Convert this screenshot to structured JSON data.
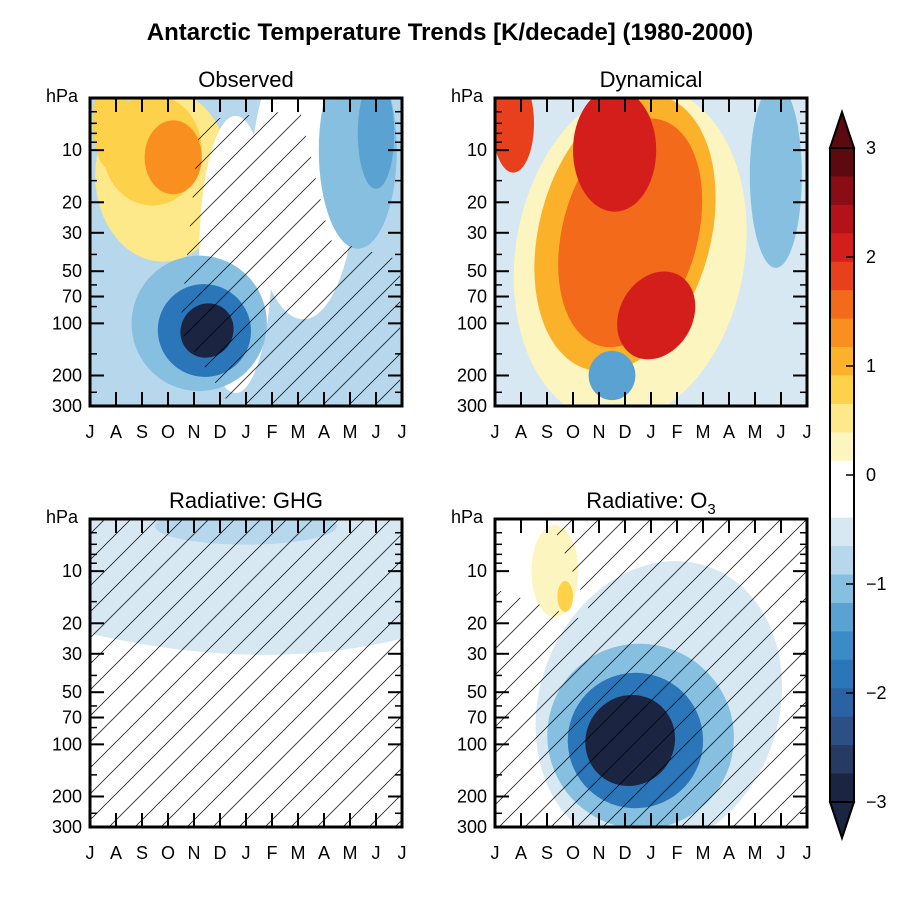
{
  "title": "Antarctic Temperature Trends [K/decade] (1980-2000)",
  "pressure_unit": "hPa",
  "chart_data": [
    {
      "type": "heatmap",
      "panel": "observed",
      "title": "Observed",
      "x_ticks": [
        "J",
        "A",
        "S",
        "O",
        "N",
        "D",
        "J",
        "F",
        "M",
        "A",
        "M",
        "J",
        "J"
      ],
      "y_ticks": [
        10,
        20,
        30,
        50,
        70,
        100,
        200,
        300
      ],
      "y_scale": "log",
      "ylim": [
        300,
        5
      ],
      "features": [
        {
          "kind": "warm",
          "month": 2.8,
          "p": 12,
          "value": 1.2
        },
        {
          "kind": "warm",
          "month": 1.0,
          "p": 8,
          "value": 0.9
        },
        {
          "kind": "cold",
          "month": 4.5,
          "p": 100,
          "value": -3.0
        },
        {
          "kind": "cold",
          "month": 10.5,
          "p": 8,
          "value": -1.3
        }
      ]
    },
    {
      "type": "heatmap",
      "panel": "dynamical",
      "title": "Dynamical",
      "x_ticks": [
        "J",
        "A",
        "S",
        "O",
        "N",
        "D",
        "J",
        "F",
        "M",
        "A",
        "M",
        "J",
        "J"
      ],
      "y_ticks": [
        10,
        20,
        30,
        50,
        70,
        100,
        200,
        300
      ],
      "y_scale": "log",
      "ylim": [
        300,
        5
      ],
      "features": [
        {
          "kind": "warm",
          "month": 5.0,
          "p": 15,
          "value": 2.1
        },
        {
          "kind": "warm",
          "month": 6.2,
          "p": 90,
          "value": 2.2
        },
        {
          "kind": "warm",
          "month": 0.7,
          "p": 7,
          "value": 1.8
        },
        {
          "kind": "cold",
          "month": 4.5,
          "p": 200,
          "value": -1.4
        },
        {
          "kind": "cold",
          "month": 10.8,
          "p": 15,
          "value": -1.2
        }
      ]
    },
    {
      "type": "heatmap",
      "panel": "radiative_ghg",
      "title": "Radiative: GHG",
      "x_ticks": [
        "J",
        "A",
        "S",
        "O",
        "N",
        "D",
        "J",
        "F",
        "M",
        "A",
        "M",
        "J",
        "J"
      ],
      "y_ticks": [
        10,
        20,
        30,
        50,
        70,
        100,
        200,
        300
      ],
      "y_scale": "log",
      "ylim": [
        300,
        5
      ],
      "features": [
        {
          "kind": "cold",
          "month": 6,
          "p": 5,
          "value": -0.9
        },
        {
          "kind": "cold",
          "month": 6,
          "p": 20,
          "value": -0.5
        }
      ]
    },
    {
      "type": "heatmap",
      "panel": "radiative_o3",
      "title": "Radiative: O",
      "title_sub": "3",
      "x_ticks": [
        "J",
        "A",
        "S",
        "O",
        "N",
        "D",
        "J",
        "F",
        "M",
        "A",
        "M",
        "J",
        "J"
      ],
      "y_ticks": [
        10,
        20,
        30,
        50,
        70,
        100,
        200,
        300
      ],
      "y_scale": "log",
      "ylim": [
        300,
        5
      ],
      "features": [
        {
          "kind": "warm",
          "month": 2.5,
          "p": 10,
          "value": 0.5
        },
        {
          "kind": "cold",
          "month": 5.2,
          "p": 90,
          "value": -3.0
        }
      ]
    }
  ],
  "colorbar": {
    "ticks": [
      "3",
      "2",
      "1",
      "0",
      "−1",
      "−2",
      "−3"
    ],
    "range": [
      -3,
      3
    ],
    "colors": [
      "#1b2440",
      "#263a63",
      "#2c4f86",
      "#2a62a3",
      "#2b76b8",
      "#3a8bc6",
      "#5aa2d2",
      "#86bfe0",
      "#b6d7ec",
      "#d7e8f3",
      "#ffffff",
      "#ffffff",
      "#fdf5c0",
      "#fde88a",
      "#fdd14a",
      "#fbb129",
      "#f98f1f",
      "#f36a1a",
      "#e8401c",
      "#d41e1c",
      "#b3121a",
      "#8a0c14",
      "#5c0a0f"
    ]
  }
}
